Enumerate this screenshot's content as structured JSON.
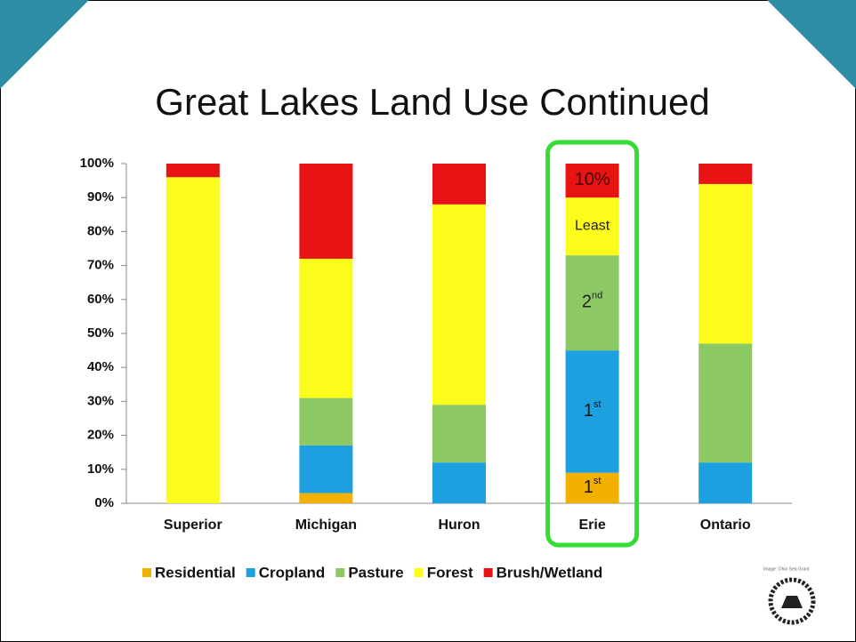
{
  "chart_data": {
    "type": "stacked_bar",
    "title": "Great Lakes Land Use Continued",
    "categories": [
      "Superior",
      "Michigan",
      "Huron",
      "Erie",
      "Ontario"
    ],
    "series": [
      {
        "name": "Residential",
        "color": "#f2b100",
        "values": [
          0,
          3,
          0,
          9,
          0
        ]
      },
      {
        "name": "Cropland",
        "color": "#1ca0e0",
        "values": [
          0,
          14,
          12,
          36,
          12
        ]
      },
      {
        "name": "Pasture",
        "color": "#8cc864",
        "values": [
          0,
          14,
          17,
          28,
          35
        ]
      },
      {
        "name": "Forest",
        "color": "#fbfb1c",
        "values": [
          96,
          41,
          59,
          17,
          47
        ]
      },
      {
        "name": "Brush/Wetland",
        "color": "#e81414",
        "values": [
          4,
          28,
          12,
          10,
          6
        ]
      }
    ],
    "annotations": [
      {
        "text": "10%"
      },
      {
        "text": "Least"
      },
      {
        "text": "2",
        "sup": "nd"
      },
      {
        "text": "1",
        "sup": "st"
      },
      {
        "text": "1",
        "sup": "st"
      }
    ],
    "ylim": [
      0,
      100
    ],
    "yticks": [
      {
        "value": 0,
        "label": "0%"
      },
      {
        "value": 10,
        "label": "10%"
      },
      {
        "value": 20,
        "label": "20%"
      },
      {
        "value": 30,
        "label": "30%"
      },
      {
        "value": 40,
        "label": "40%"
      },
      {
        "value": 50,
        "label": "50%"
      },
      {
        "value": 60,
        "label": "60%"
      },
      {
        "value": 70,
        "label": "70%"
      },
      {
        "value": 80,
        "label": "80%"
      },
      {
        "value": 90,
        "label": "90%"
      },
      {
        "value": 100,
        "label": "100%"
      }
    ],
    "legend": "bottom",
    "highlight_color": "#33dd33",
    "credit": "Image: Ohio Sea Grant"
  }
}
